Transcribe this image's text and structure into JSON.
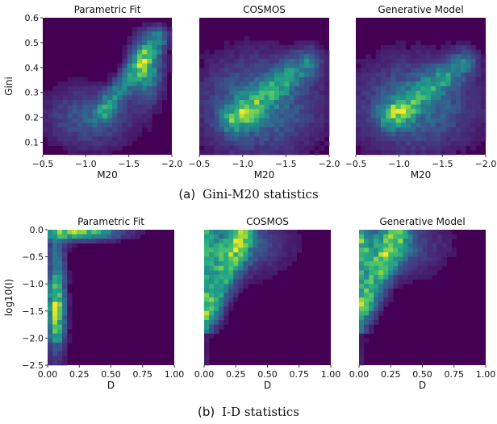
{
  "captions": {
    "a": {
      "letter": "(a)",
      "text": "Gini-M20 statistics"
    },
    "b": {
      "letter": "(b)",
      "text": "I-D statistics"
    }
  },
  "colormap": [
    "#440154",
    "#472c7a",
    "#3b518b",
    "#2c718e",
    "#21908d",
    "#27ad81",
    "#5cc863",
    "#aadc32",
    "#fde725"
  ],
  "chart_data": [
    {
      "type": "heatmap",
      "title": "Parametric Fit",
      "xlabel": "M20",
      "ylabel": "Gini",
      "xlim": [
        -0.5,
        -2.0
      ],
      "ylim": [
        0.05,
        0.6
      ],
      "xticks": [
        -0.5,
        -1.0,
        -1.5,
        -2.0
      ],
      "yticks": [
        0.1,
        0.2,
        0.3,
        0.4,
        0.5,
        0.6
      ],
      "xtick_labels": [
        "−0.5",
        "−1.0",
        "−1.5",
        "−2.0"
      ],
      "ytick_labels": [
        "0.1",
        "0.2",
        "0.3",
        "0.4",
        "0.5",
        "0.6"
      ],
      "grid": false,
      "density_model": "ridge",
      "density_params": {
        "x0": -1.2,
        "y0": 0.22,
        "x1": -1.85,
        "y1": 0.52,
        "sigma": 0.05,
        "broad_center": [
          -1.05,
          0.2
        ],
        "broad_sigma": [
          0.35,
          0.08
        ],
        "broad_amp": 0.35,
        "hot_center": [
          -1.7,
          0.4
        ],
        "hot_sigma": [
          0.12,
          0.08
        ],
        "hot_amp": 0.8
      }
    },
    {
      "type": "heatmap",
      "title": "COSMOS",
      "xlabel": "M20",
      "ylabel": "",
      "xlim": [
        -0.5,
        -2.0
      ],
      "ylim": [
        0.05,
        0.6
      ],
      "xticks": [
        -0.5,
        -1.0,
        -1.5,
        -2.0
      ],
      "yticks": [],
      "xtick_labels": [
        "−0.5",
        "−1.0",
        "−1.5",
        "−2.0"
      ],
      "ytick_labels": [],
      "grid": false,
      "density_model": "band",
      "density_params": {
        "x0": -0.9,
        "y0": 0.19,
        "x1": -1.75,
        "y1": 0.42,
        "sigma": 0.07,
        "broad_center": [
          -1.2,
          0.25
        ],
        "broad_sigma": [
          0.45,
          0.13
        ],
        "broad_amp": 0.45,
        "hot_center": [
          -1.0,
          0.21
        ],
        "hot_sigma": [
          0.15,
          0.04
        ],
        "hot_amp": 0.3
      }
    },
    {
      "type": "heatmap",
      "title": "Generative Model",
      "xlabel": "M20",
      "ylabel": "",
      "xlim": [
        -0.5,
        -2.0
      ],
      "ylim": [
        0.05,
        0.6
      ],
      "xticks": [
        -0.5,
        -1.0,
        -1.5,
        -2.0
      ],
      "yticks": [],
      "xtick_labels": [
        "−0.5",
        "−1.0",
        "−1.5",
        "−2.0"
      ],
      "ytick_labels": [],
      "grid": false,
      "density_model": "band",
      "density_params": {
        "x0": -0.9,
        "y0": 0.2,
        "x1": -1.75,
        "y1": 0.42,
        "sigma": 0.065,
        "broad_center": [
          -1.2,
          0.25
        ],
        "broad_sigma": [
          0.45,
          0.12
        ],
        "broad_amp": 0.45,
        "hot_center": [
          -1.0,
          0.22
        ],
        "hot_sigma": [
          0.12,
          0.035
        ],
        "hot_amp": 0.4
      }
    },
    {
      "type": "heatmap",
      "title": "Parametric Fit",
      "xlabel": "D",
      "ylabel": "log10(I)",
      "xlim": [
        0.0,
        1.0
      ],
      "ylim": [
        -2.5,
        0.0
      ],
      "xticks": [
        0.0,
        0.25,
        0.5,
        0.75,
        1.0
      ],
      "yticks": [
        -2.5,
        -2.0,
        -1.5,
        -1.0,
        -0.5,
        0.0
      ],
      "xtick_labels": [
        "0.00",
        "0.25",
        "0.50",
        "0.75",
        "1.00"
      ],
      "ytick_labels": [
        "−2.5",
        "−2.0",
        "−1.5",
        "−1.0",
        "−0.5",
        "0.0"
      ],
      "grid": false,
      "density_model": "L-shape",
      "density_params": {
        "vertical_x": 0.07,
        "vertical_sigma": 0.04,
        "vertical_center": -1.45,
        "top_y": -0.05,
        "top_sigma": 0.08,
        "top_x_center": 0.25,
        "top_x_sigma": 0.18
      }
    },
    {
      "type": "heatmap",
      "title": "COSMOS",
      "xlabel": "D",
      "ylabel": "",
      "xlim": [
        0.0,
        1.0
      ],
      "ylim": [
        -2.5,
        0.0
      ],
      "xticks": [
        0.0,
        0.25,
        0.5,
        0.75,
        1.0
      ],
      "yticks": [],
      "xtick_labels": [
        "0.00",
        "0.25",
        "0.50",
        "0.75",
        "1.00"
      ],
      "ytick_labels": [],
      "grid": false,
      "density_model": "wedge",
      "density_params": {
        "apex_x": 0.03,
        "apex_y": -1.5,
        "top_x": 0.3,
        "top_y": -0.1,
        "sigma": 0.07,
        "amp": 0.6
      }
    },
    {
      "type": "heatmap",
      "title": "Generative Model",
      "xlabel": "D",
      "ylabel": "",
      "xlim": [
        0.0,
        1.0
      ],
      "ylim": [
        -2.5,
        0.0
      ],
      "xticks": [
        0.0,
        0.25,
        0.5,
        0.75,
        1.0
      ],
      "yticks": [],
      "xtick_labels": [
        "0.00",
        "0.25",
        "0.50",
        "0.75",
        "1.00"
      ],
      "ytick_labels": [],
      "grid": false,
      "density_model": "wedge",
      "density_params": {
        "apex_x": 0.04,
        "apex_y": -1.4,
        "top_x": 0.3,
        "top_y": -0.1,
        "sigma": 0.07,
        "amp": 0.55
      }
    }
  ]
}
